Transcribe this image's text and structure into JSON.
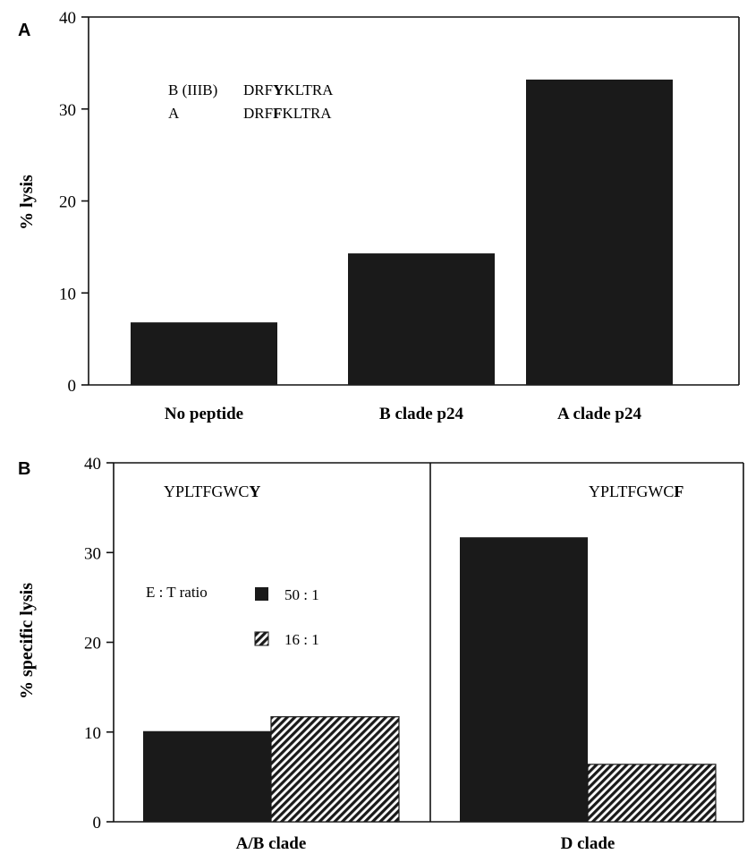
{
  "chart_data": [
    {
      "panel": "A",
      "type": "bar",
      "title": "",
      "xlabel": "",
      "ylabel": "% lysis",
      "ylim": [
        0,
        40
      ],
      "yticks": [
        "0",
        "10",
        "20",
        "30",
        "40"
      ],
      "categories": [
        "No peptide",
        "B clade p24",
        "A clade p24"
      ],
      "values": [
        6.8,
        14.3,
        33.2
      ],
      "grid": false,
      "annotation": {
        "rows": [
          {
            "label": "B (IIIB)",
            "pre": "DRF",
            "bold": "Y",
            "post": "KLTRA"
          },
          {
            "label": "A",
            "pre": "DRF",
            "bold": "F",
            "post": "KLTRA"
          }
        ]
      }
    },
    {
      "panel": "B",
      "type": "bar",
      "title": "",
      "xlabel": "",
      "ylabel": "% specific lysis",
      "ylim": [
        0,
        40
      ],
      "yticks": [
        "0",
        "10",
        "20",
        "30",
        "40"
      ],
      "categories": [
        "A/B clade",
        "D clade"
      ],
      "series": [
        {
          "name": "50 : 1",
          "values": [
            10.1,
            31.7
          ]
        },
        {
          "name": "16 : 1",
          "values": [
            11.7,
            6.4
          ]
        }
      ],
      "legend_title": "E : T ratio",
      "legend_placement": "left",
      "grid": false,
      "annotations": [
        {
          "pre": "YPLTFGWC",
          "bold": "Y"
        },
        {
          "pre": "YPLTFGWC",
          "bold": "F"
        }
      ]
    }
  ]
}
